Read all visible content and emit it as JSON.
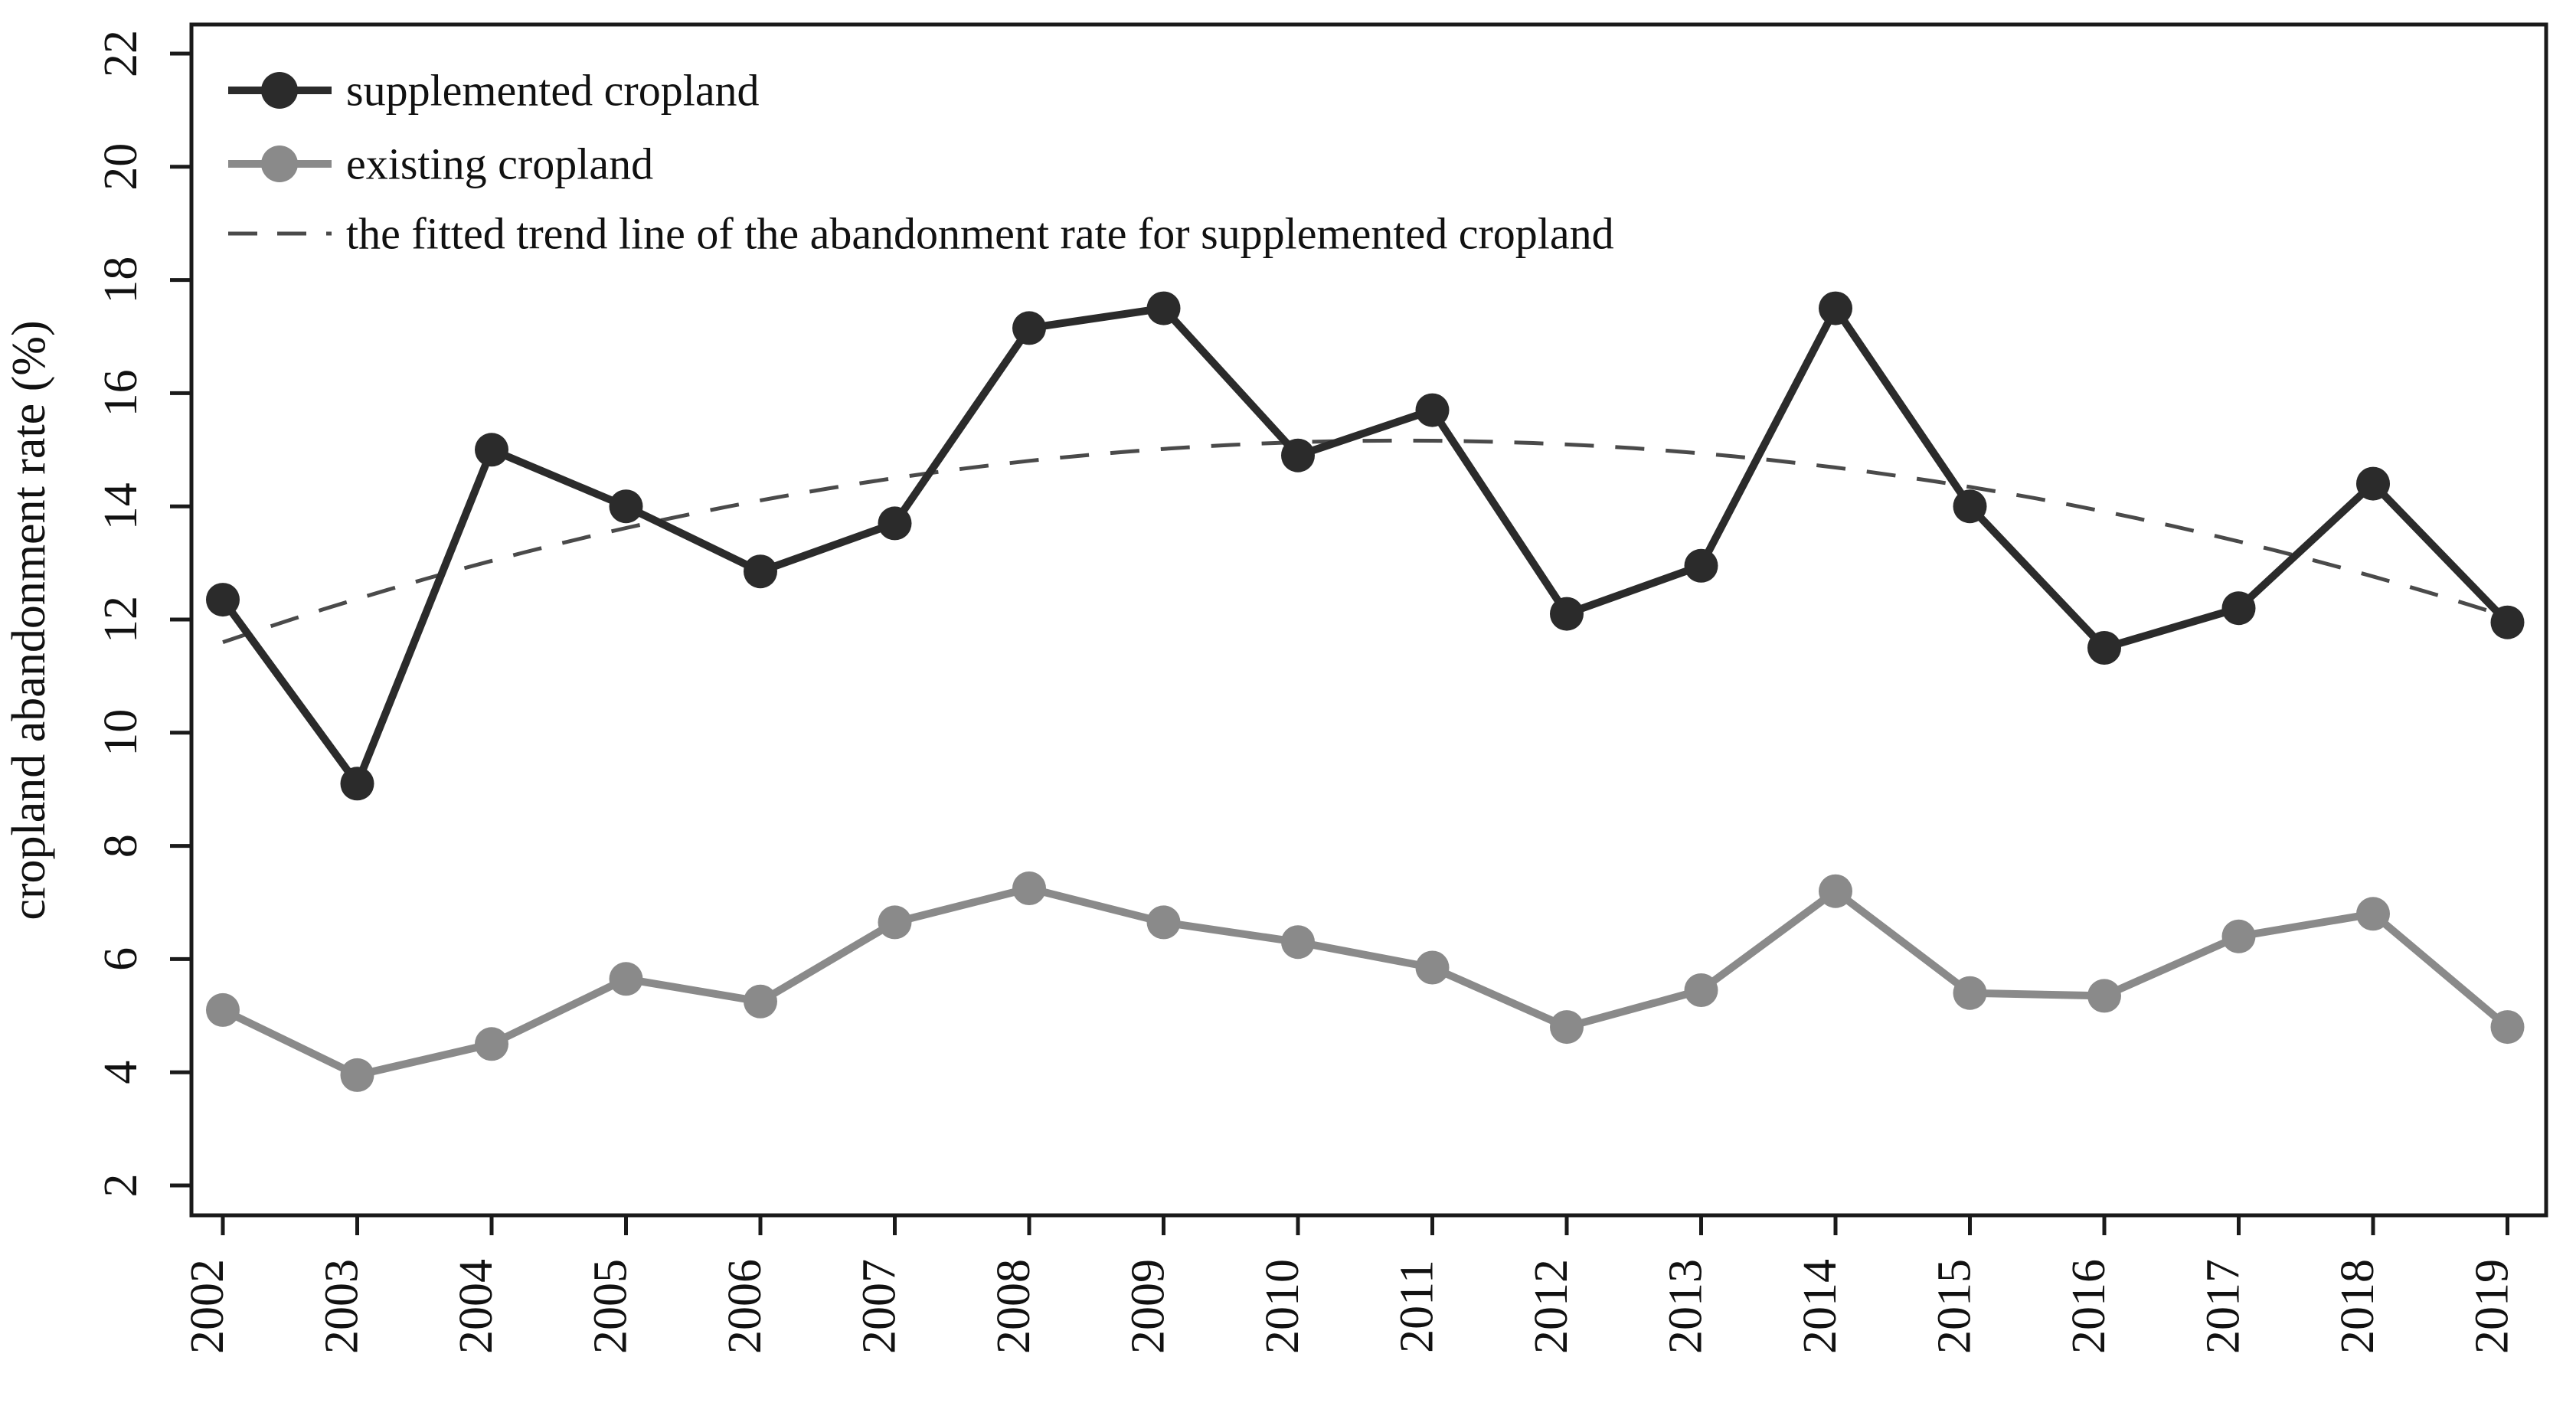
{
  "figure": {
    "background": "#ffffff",
    "frame_color": "#1a1a1a",
    "tick_color": "#1a1a1a",
    "text_color": "#111111"
  },
  "chart_data": {
    "type": "line",
    "title": "",
    "xlabel": "",
    "ylabel": "cropland abandonment rate (%)",
    "x_tick_labels": [
      "2002",
      "2003",
      "2004",
      "2005",
      "2006",
      "2007",
      "2008",
      "2009",
      "2010",
      "2011",
      "2012",
      "2013",
      "2014",
      "2015",
      "2016",
      "2017",
      "2018",
      "2019"
    ],
    "y_tick_labels": [
      "2",
      "4",
      "6",
      "8",
      "10",
      "12",
      "14",
      "16",
      "18",
      "20",
      "22"
    ],
    "y_ticks": [
      2,
      4,
      6,
      8,
      10,
      12,
      14,
      16,
      18,
      20,
      22
    ],
    "ylim": [
      1.5,
      22.5
    ],
    "grid": false,
    "legend_position": "top-left",
    "categories": [
      2002,
      2003,
      2004,
      2005,
      2006,
      2007,
      2008,
      2009,
      2010,
      2011,
      2012,
      2013,
      2014,
      2015,
      2016,
      2017,
      2018,
      2019
    ],
    "series": [
      {
        "name": "supplemented cropland",
        "kind": "line-markers",
        "color": "#2b2b2b",
        "marker": "circle",
        "values": [
          12.35,
          9.1,
          15.0,
          14.0,
          12.85,
          13.7,
          17.15,
          17.5,
          14.9,
          15.7,
          12.1,
          12.95,
          17.5,
          14.0,
          11.5,
          12.2,
          14.4,
          11.95
        ]
      },
      {
        "name": "existing cropland",
        "kind": "line-markers",
        "color": "#8a8a8a",
        "marker": "circle",
        "values": [
          5.1,
          3.95,
          4.5,
          5.65,
          5.25,
          6.65,
          7.25,
          6.65,
          6.3,
          5.85,
          4.8,
          5.45,
          7.2,
          5.4,
          5.35,
          6.4,
          6.8,
          4.8
        ]
      },
      {
        "name": "the fitted trend line of the abandonment rate for supplemented cropland",
        "kind": "dashed-trend",
        "color": "#4a4a4a",
        "trend_coefficients": {
          "a": -0.04614,
          "b": 0.8108,
          "c": 11.6
        },
        "values": [
          11.6,
          12.36,
          13.04,
          13.62,
          14.1,
          14.5,
          14.8,
          15.01,
          15.13,
          15.16,
          15.09,
          14.94,
          14.69,
          14.35,
          13.91,
          13.39,
          12.76,
          12.05
        ]
      }
    ]
  }
}
